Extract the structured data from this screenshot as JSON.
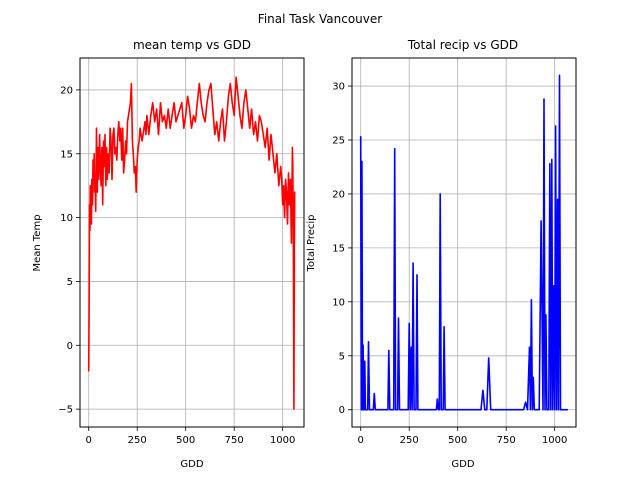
{
  "figure": {
    "title": "Final Task   Vancouver"
  },
  "chart_data": [
    {
      "type": "line",
      "title": "mean temp vs GDD",
      "xlabel": "GDD",
      "ylabel": "Mean Temp",
      "xlim": [
        -45,
        1110
      ],
      "ylim": [
        -6.4,
        22.5
      ],
      "xticks": [
        0,
        250,
        500,
        750,
        1000
      ],
      "yticks": [
        -5,
        0,
        5,
        10,
        15,
        20
      ],
      "grid": true,
      "series": [
        {
          "color": "#ff0000",
          "x": [
            0,
            2,
            4,
            6,
            8,
            10,
            12,
            14,
            16,
            18,
            20,
            22,
            25,
            28,
            30,
            33,
            36,
            40,
            44,
            48,
            52,
            56,
            60,
            64,
            68,
            72,
            76,
            80,
            84,
            88,
            92,
            96,
            100,
            105,
            110,
            115,
            120,
            125,
            130,
            135,
            140,
            145,
            150,
            155,
            160,
            165,
            170,
            175,
            180,
            185,
            190,
            195,
            200,
            205,
            210,
            215,
            220,
            225,
            230,
            235,
            240,
            245,
            250,
            255,
            260,
            265,
            270,
            275,
            280,
            285,
            290,
            295,
            300,
            310,
            320,
            330,
            340,
            350,
            360,
            370,
            380,
            390,
            400,
            410,
            420,
            430,
            440,
            450,
            460,
            470,
            480,
            490,
            500,
            510,
            520,
            530,
            540,
            550,
            560,
            570,
            580,
            590,
            600,
            610,
            620,
            630,
            640,
            650,
            660,
            670,
            680,
            690,
            700,
            710,
            720,
            730,
            740,
            750,
            760,
            770,
            780,
            790,
            800,
            810,
            820,
            830,
            840,
            850,
            860,
            870,
            880,
            890,
            900,
            910,
            920,
            930,
            940,
            950,
            960,
            970,
            980,
            990,
            995,
            1000,
            1005,
            1010,
            1015,
            1020,
            1025,
            1030,
            1035,
            1040,
            1045,
            1048,
            1050,
            1052,
            1055,
            1058,
            1060,
            1062
          ],
          "y": [
            -2.0,
            3.0,
            11.0,
            9.0,
            12.5,
            10.0,
            11.0,
            9.5,
            13.0,
            12.0,
            11.0,
            14.5,
            13.0,
            15.0,
            12.0,
            13.5,
            10.5,
            17.0,
            12.0,
            15.5,
            13.0,
            16.5,
            14.0,
            12.5,
            15.5,
            11.0,
            16.0,
            14.0,
            16.5,
            12.5,
            15.5,
            13.0,
            15.0,
            13.5,
            17.0,
            16.0,
            13.0,
            16.5,
            17.0,
            15.0,
            15.5,
            14.5,
            16.5,
            17.5,
            16.0,
            17.0,
            14.5,
            17.0,
            13.5,
            14.5,
            16.0,
            15.0,
            17.5,
            18.0,
            18.5,
            19.0,
            20.5,
            16.0,
            15.0,
            13.5,
            14.0,
            12.0,
            14.5,
            15.5,
            16.0,
            17.0,
            16.5,
            16.0,
            16.5,
            17.0,
            17.5,
            16.5,
            18.0,
            16.5,
            18.0,
            19.0,
            17.5,
            18.5,
            16.5,
            19.0,
            17.5,
            18.0,
            17.0,
            18.5,
            17.0,
            18.0,
            19.0,
            17.5,
            18.0,
            18.5,
            19.0,
            17.0,
            18.0,
            19.5,
            18.5,
            17.0,
            18.0,
            17.5,
            19.0,
            20.5,
            19.0,
            18.0,
            17.5,
            19.0,
            20.0,
            20.5,
            18.5,
            16.5,
            17.5,
            16.0,
            17.5,
            18.5,
            16.0,
            17.5,
            19.5,
            20.5,
            19.0,
            18.0,
            21.0,
            19.5,
            18.0,
            17.0,
            19.0,
            20.0,
            18.5,
            17.0,
            18.5,
            16.5,
            17.5,
            16.0,
            18.0,
            17.5,
            16.5,
            15.5,
            17.0,
            14.5,
            16.5,
            15.0,
            13.5,
            15.0,
            12.5,
            14.0,
            13.0,
            11.0,
            12.5,
            10.0,
            13.0,
            12.0,
            9.5,
            13.5,
            11.0,
            13.0,
            8.0,
            12.0,
            15.5,
            14.0,
            9.0,
            -5.0,
            7.0,
            12.0
          ]
        }
      ]
    },
    {
      "type": "line",
      "title": "Total recip vs GDD",
      "xlabel": "GDD",
      "ylabel": "Total Precip",
      "xlim": [
        -45,
        1110
      ],
      "ylim": [
        -1.6,
        32.6
      ],
      "xticks": [
        0,
        250,
        500,
        750,
        1000
      ],
      "yticks": [
        0,
        5,
        10,
        15,
        20,
        25,
        30
      ],
      "grid": true,
      "series": [
        {
          "color": "#0000ff",
          "x": [
            0,
            3,
            6,
            9,
            12,
            15,
            18,
            21,
            24,
            27,
            30,
            33,
            36,
            40,
            45,
            50,
            55,
            60,
            65,
            70,
            75,
            80,
            85,
            90,
            95,
            100,
            110,
            120,
            130,
            140,
            145,
            150,
            155,
            160,
            165,
            170,
            175,
            180,
            185,
            190,
            195,
            200,
            205,
            210,
            220,
            230,
            240,
            245,
            250,
            255,
            260,
            265,
            270,
            275,
            280,
            285,
            290,
            295,
            300,
            305,
            310,
            315,
            320,
            330,
            340,
            350,
            360,
            370,
            380,
            390,
            395,
            400,
            405,
            410,
            415,
            420,
            425,
            430,
            435,
            440,
            445,
            450,
            455,
            460,
            470,
            480,
            500,
            550,
            600,
            620,
            630,
            640,
            650,
            660,
            670,
            680,
            690,
            700,
            750,
            800,
            840,
            850,
            860,
            870,
            875,
            880,
            885,
            890,
            895,
            900,
            905,
            910,
            915,
            920,
            930,
            940,
            945,
            950,
            955,
            960,
            965,
            970,
            975,
            980,
            985,
            990,
            995,
            1000,
            1005,
            1010,
            1015,
            1020,
            1025,
            1030,
            1035,
            1040,
            1045,
            1050,
            1055,
            1060,
            1065
          ],
          "y": [
            25.3,
            0.0,
            23.0,
            0.0,
            6.0,
            0.0,
            0.0,
            4.5,
            0.0,
            0.0,
            0.0,
            0.0,
            0.0,
            6.3,
            0.0,
            0.0,
            0.0,
            0.0,
            0.0,
            1.5,
            0.0,
            0.0,
            0.0,
            0.0,
            0.0,
            0.0,
            0.0,
            0.0,
            0.0,
            0.0,
            5.5,
            0.0,
            0.0,
            0.0,
            0.0,
            0.0,
            24.2,
            0.0,
            0.0,
            0.0,
            8.5,
            0.0,
            0.0,
            0.0,
            0.0,
            0.0,
            0.0,
            0.0,
            8.0,
            0.0,
            5.8,
            0.0,
            13.6,
            0.0,
            0.0,
            0.0,
            12.5,
            0.0,
            0.0,
            0.0,
            0.0,
            0.0,
            0.0,
            0.0,
            0.0,
            0.0,
            0.0,
            0.0,
            0.0,
            0.0,
            1.0,
            0.0,
            0.0,
            20.0,
            0.0,
            0.0,
            0.0,
            7.7,
            0.0,
            0.0,
            0.0,
            0.0,
            0.0,
            0.0,
            0.0,
            0.0,
            0.0,
            0.0,
            0.0,
            0.0,
            1.8,
            0.0,
            0.0,
            4.8,
            0.0,
            0.0,
            0.0,
            0.0,
            0.0,
            0.0,
            0.0,
            0.7,
            0.0,
            5.8,
            0.0,
            10.2,
            0.0,
            3.0,
            0.0,
            0.0,
            0.0,
            0.0,
            0.0,
            0.0,
            17.5,
            0.0,
            28.8,
            0.0,
            8.8,
            0.0,
            0.0,
            0.0,
            22.8,
            0.0,
            23.2,
            0.0,
            11.5,
            0.0,
            26.3,
            0.0,
            19.5,
            0.0,
            31.0,
            0.0,
            0.0,
            0.0,
            0.0,
            0.0,
            0.0,
            0.0,
            0.0
          ]
        }
      ]
    }
  ]
}
